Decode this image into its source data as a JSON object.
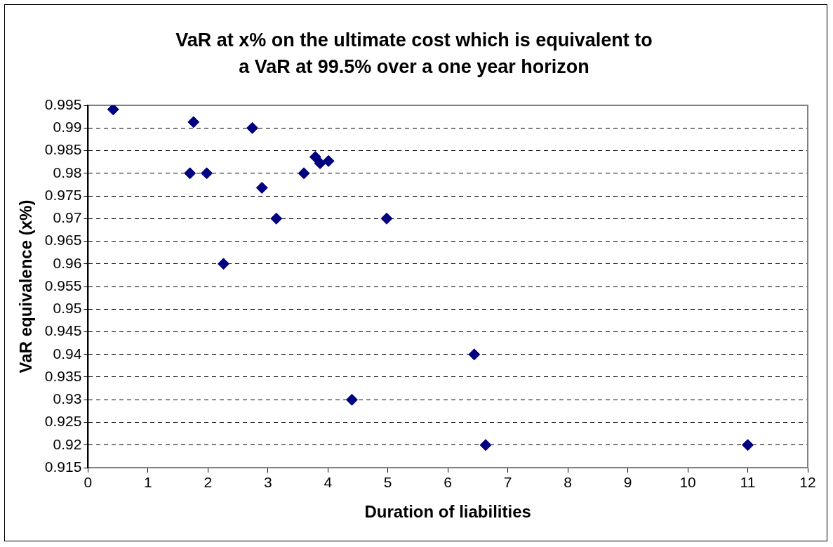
{
  "chart_data": {
    "type": "scatter",
    "title": "VaR at x% on the ultimate cost which is equivalent to a VaR at 99.5% over a one year horizon",
    "xlabel": "Duration of liabilities",
    "ylabel": "VaR equivalence (x%)",
    "x": [
      0.42,
      1.76,
      2.74,
      1.7,
      1.98,
      2.9,
      3.14,
      4.98,
      2.26,
      3.6,
      3.79,
      3.87,
      4.01,
      6.44,
      4.4,
      6.63,
      11
    ],
    "series": [
      {
        "color": "#000080",
        "values": [
          0.9941,
          0.9913,
          0.99,
          0.98,
          0.98,
          0.9768,
          0.97,
          0.97,
          0.96,
          0.98,
          0.9836,
          0.9822,
          0.9827,
          0.94,
          0.93,
          0.92,
          0.92
        ]
      }
    ],
    "xlim": [
      0,
      12
    ],
    "xticks": [
      0,
      1,
      2,
      3,
      4,
      5,
      6,
      7,
      8,
      9,
      10,
      11,
      12
    ],
    "ylim": [
      0.915,
      0.995
    ],
    "yticks": [
      0.915,
      0.92,
      0.925,
      0.93,
      0.935,
      0.94,
      0.945,
      0.95,
      0.955,
      0.96,
      0.965,
      0.97,
      0.975,
      0.98,
      0.985,
      0.99,
      0.995
    ],
    "grid": "y",
    "legend": false,
    "marker": "diamond"
  }
}
